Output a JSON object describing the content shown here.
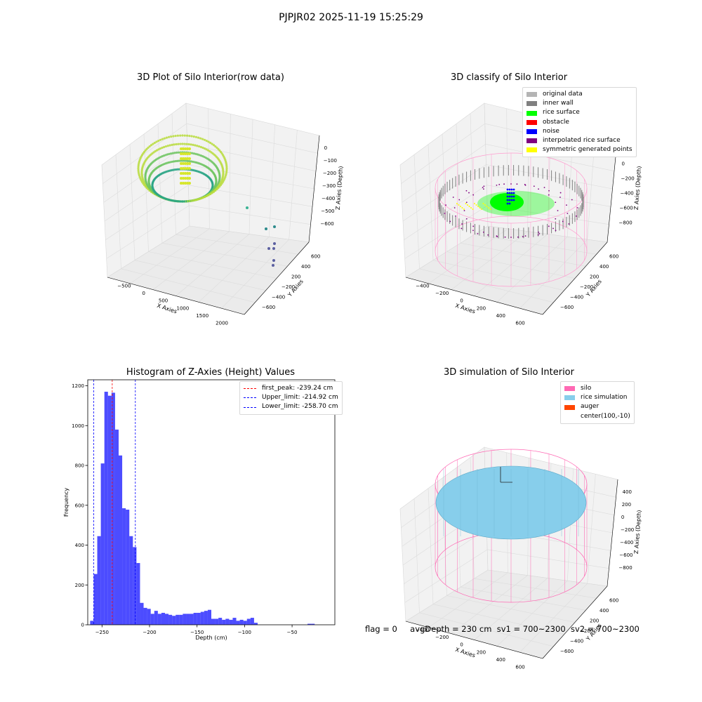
{
  "suptitle": "PJPJR02 2025-11-19 15:25:29",
  "panels": {
    "raw": {
      "title": "3D Plot of Silo Interior(row data)",
      "xlabel": "X Axies",
      "ylabel": "Y Axies",
      "zlabel": "Z Axies (Depth)",
      "xticks": [
        "−500",
        "0",
        "500",
        "1000",
        "1500",
        "2000"
      ],
      "yticks": [
        "600",
        "400",
        "200",
        "−200",
        "−400",
        "−600"
      ],
      "zticks": [
        "0",
        "−100",
        "−200",
        "−300",
        "−400",
        "−500",
        "−600"
      ]
    },
    "classify": {
      "title": "3D classify of Silo Interior",
      "xlabel": "X Axies",
      "ylabel": "Y Axies",
      "zlabel": "Z Axies (Depth)",
      "xticks": [
        "−400",
        "−200",
        "0",
        "200",
        "400",
        "600"
      ],
      "yticks": [
        "600",
        "400",
        "200",
        "−200",
        "−400",
        "−600"
      ],
      "zticks": [
        "200",
        "0",
        "−200",
        "−400",
        "−600",
        "−800"
      ],
      "legend": [
        {
          "label": "original data",
          "color": "#b4b4b4"
        },
        {
          "label": "inner wall",
          "color": "#808080"
        },
        {
          "label": "rice surface",
          "color": "#00ff00"
        },
        {
          "label": "obstacle",
          "color": "#ff0000"
        },
        {
          "label": "noise",
          "color": "#0000ff"
        },
        {
          "label": "interpolated rice surface",
          "color": "#800080"
        },
        {
          "label": "symmetric generated points",
          "color": "#ffff00"
        }
      ]
    },
    "hist": {
      "title": "Histogram of Z-Axies (Height) Values",
      "legend": [
        {
          "label": "first_peak: -239.24 cm",
          "color": "#ff0000"
        },
        {
          "label": "Upper_limit: -214.92 cm",
          "color": "#0000ff"
        },
        {
          "label": "Lower_limit: -258.70 cm",
          "color": "#0000ff"
        }
      ]
    },
    "sim": {
      "title": "3D simulation of Silo Interior",
      "xlabel": "X Axies",
      "ylabel": "Y Axies",
      "zlabel": "Z Axies (Depth)",
      "xticks": [
        "−400",
        "−200",
        "0",
        "200",
        "400",
        "600"
      ],
      "yticks": [
        "600",
        "400",
        "200",
        "−200",
        "−400",
        "−600"
      ],
      "zticks": [
        "400",
        "200",
        "0",
        "−200",
        "−400",
        "−600",
        "−800"
      ],
      "legend": [
        {
          "label": "silo",
          "color": "#ff69b4"
        },
        {
          "label": "rice simulation",
          "color": "#87ceeb"
        },
        {
          "label": "auger",
          "color": "#ff4500"
        },
        {
          "label": "center(100,-10)",
          "color": ""
        }
      ]
    }
  },
  "chart_data": {
    "type": "bar",
    "title": "Histogram of Z-Axies (Height) Values",
    "xlabel": "Depth (cm)",
    "ylabel": "Frequency",
    "bar_color": "#0000ff",
    "xlim": [
      -265,
      -5
    ],
    "ylim": [
      0,
      1230
    ],
    "xticks": [
      -250,
      -200,
      -150,
      -100,
      -50
    ],
    "xtick_labels": [
      "−250",
      "−200",
      "−150",
      "−100",
      "−50"
    ],
    "yticks": [
      0,
      200,
      400,
      600,
      800,
      1000,
      1200
    ],
    "bin_width": 3.75,
    "bin_starts": [
      -262.5,
      -258.75,
      -255,
      -251.25,
      -247.5,
      -243.75,
      -240,
      -236.25,
      -232.5,
      -228.75,
      -225,
      -221.25,
      -217.5,
      -213.75,
      -210,
      -206.25,
      -202.5,
      -198.75,
      -195,
      -191.25,
      -187.5,
      -183.75,
      -180,
      -176.25,
      -172.5,
      -168.75,
      -165,
      -161.25,
      -157.5,
      -153.75,
      -150,
      -146.25,
      -142.5,
      -138.75,
      -135,
      -131.25,
      -127.5,
      -123.75,
      -120,
      -116.25,
      -112.5,
      -108.75,
      -105,
      -101.25,
      -97.5,
      -93.75,
      -90,
      -86.25,
      -82.5,
      -78.75,
      -75,
      -71.25,
      -67.5,
      -63.75,
      -60,
      -56.25,
      -52.5,
      -48.75,
      -45,
      -41.25,
      -37.5,
      -33.75,
      -30,
      -26.25,
      -22.5,
      -18.75,
      -15
    ],
    "values": [
      20,
      255,
      445,
      810,
      1170,
      1150,
      1165,
      980,
      850,
      585,
      578,
      445,
      390,
      310,
      110,
      85,
      80,
      55,
      70,
      55,
      60,
      55,
      50,
      45,
      50,
      50,
      55,
      55,
      55,
      60,
      60,
      65,
      70,
      75,
      30,
      30,
      35,
      25,
      30,
      25,
      35,
      20,
      25,
      20,
      30,
      35,
      10,
      0,
      0,
      0,
      0,
      0,
      0,
      0,
      0,
      0,
      0,
      0,
      0,
      0,
      0,
      5,
      5,
      0,
      0,
      0,
      0
    ],
    "vlines": [
      {
        "name": "first_peak",
        "x": -239.24,
        "color": "#ff0000"
      },
      {
        "name": "Upper_limit",
        "x": -214.92,
        "color": "#0000ff"
      },
      {
        "name": "Lower_limit",
        "x": -258.7,
        "color": "#0000ff"
      }
    ]
  },
  "footer": {
    "flag": "flag = 0",
    "avg": "avgDepth = 230 cm",
    "sv1": "sv1 = 700~2300",
    "sv2": "sv2 = 700~2300"
  }
}
